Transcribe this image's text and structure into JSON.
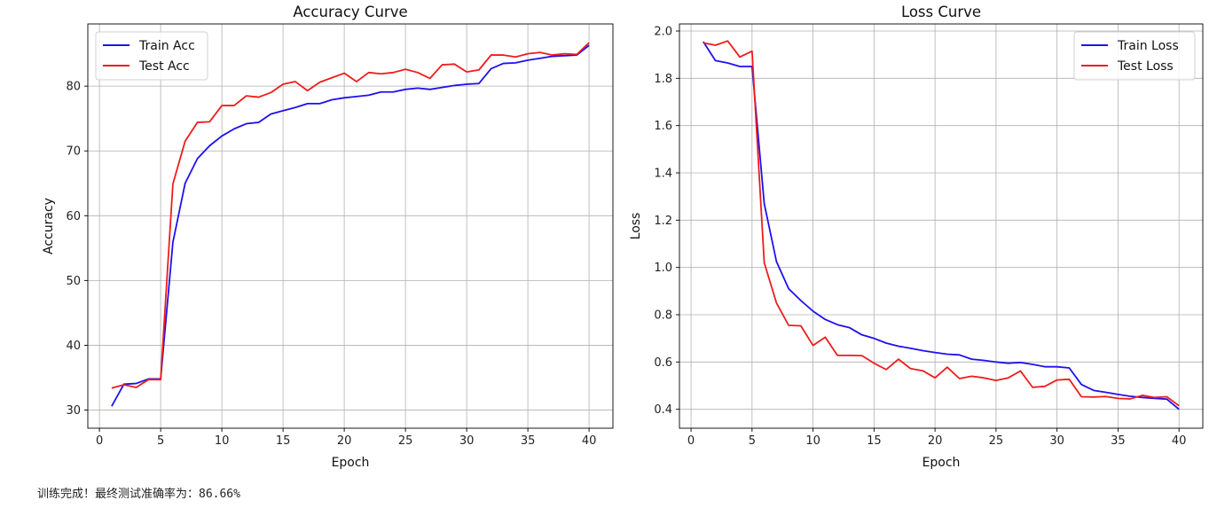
{
  "status_text": "训练完成！最终测试准确率为：86.66%",
  "chart_data": [
    {
      "type": "line",
      "title": "Accuracy Curve",
      "xlabel": "Epoch",
      "ylabel": "Accuracy",
      "xlim": [
        -0.95,
        41.95
      ],
      "ylim": [
        27.2,
        89.6
      ],
      "xticks": [
        0,
        5,
        10,
        15,
        20,
        25,
        30,
        35,
        40
      ],
      "yticks": [
        30,
        40,
        50,
        60,
        70,
        80
      ],
      "grid": true,
      "legend": "top-left",
      "x": [
        1,
        2,
        3,
        4,
        5,
        6,
        7,
        8,
        9,
        10,
        11,
        12,
        13,
        14,
        15,
        16,
        17,
        18,
        19,
        20,
        21,
        22,
        23,
        24,
        25,
        26,
        27,
        28,
        29,
        30,
        31,
        32,
        33,
        34,
        35,
        36,
        37,
        38,
        39,
        40
      ],
      "series": [
        {
          "name": "Train Acc",
          "color": "#1f10ef",
          "values": [
            30.6,
            34.0,
            34.1,
            34.8,
            34.8,
            55.9,
            65.0,
            68.8,
            70.8,
            72.3,
            73.4,
            74.2,
            74.4,
            75.7,
            76.2,
            76.7,
            77.3,
            77.3,
            77.9,
            78.2,
            78.4,
            78.6,
            79.1,
            79.1,
            79.5,
            79.7,
            79.5,
            79.8,
            80.1,
            80.3,
            80.4,
            82.7,
            83.5,
            83.6,
            84.0,
            84.3,
            84.6,
            84.7,
            84.8,
            86.3
          ]
        },
        {
          "name": "Test Acc",
          "color": "#ee1c1c",
          "values": [
            33.4,
            33.9,
            33.5,
            34.7,
            34.7,
            64.9,
            71.5,
            74.4,
            74.5,
            77.0,
            77.0,
            78.5,
            78.3,
            79.0,
            80.3,
            80.7,
            79.3,
            80.6,
            81.3,
            82.0,
            80.7,
            82.1,
            81.9,
            82.1,
            82.6,
            82.1,
            81.2,
            83.3,
            83.4,
            82.2,
            82.5,
            84.8,
            84.8,
            84.5,
            85.0,
            85.2,
            84.8,
            85.0,
            84.9,
            86.7
          ]
        }
      ]
    },
    {
      "type": "line",
      "title": "Loss Curve",
      "xlabel": "Epoch",
      "ylabel": "Loss",
      "xlim": [
        -0.95,
        41.95
      ],
      "ylim": [
        0.32,
        2.03
      ],
      "xticks": [
        0,
        5,
        10,
        15,
        20,
        25,
        30,
        35,
        40
      ],
      "yticks": [
        0.4,
        0.6,
        0.8,
        1.0,
        1.2,
        1.4,
        1.6,
        1.8,
        2.0
      ],
      "grid": true,
      "legend": "top-right",
      "x": [
        1,
        2,
        3,
        4,
        5,
        6,
        7,
        8,
        9,
        10,
        11,
        12,
        13,
        14,
        15,
        16,
        17,
        18,
        19,
        20,
        21,
        22,
        23,
        24,
        25,
        26,
        27,
        28,
        29,
        30,
        31,
        32,
        33,
        34,
        35,
        36,
        37,
        38,
        39,
        40
      ],
      "series": [
        {
          "name": "Train Loss",
          "color": "#1f10ef",
          "values": [
            1.955,
            1.875,
            1.865,
            1.85,
            1.85,
            1.27,
            1.025,
            0.91,
            0.86,
            0.815,
            0.78,
            0.758,
            0.745,
            0.715,
            0.7,
            0.68,
            0.667,
            0.658,
            0.648,
            0.64,
            0.633,
            0.63,
            0.612,
            0.607,
            0.6,
            0.595,
            0.598,
            0.59,
            0.58,
            0.58,
            0.575,
            0.505,
            0.48,
            0.472,
            0.463,
            0.455,
            0.45,
            0.446,
            0.443,
            0.4
          ]
        },
        {
          "name": "Test Loss",
          "color": "#ee1c1c",
          "values": [
            1.95,
            1.94,
            1.958,
            1.89,
            1.915,
            1.02,
            0.85,
            0.755,
            0.753,
            0.67,
            0.705,
            0.628,
            0.628,
            0.627,
            0.595,
            0.568,
            0.612,
            0.572,
            0.563,
            0.533,
            0.578,
            0.53,
            0.54,
            0.533,
            0.522,
            0.533,
            0.562,
            0.493,
            0.497,
            0.524,
            0.527,
            0.453,
            0.452,
            0.454,
            0.446,
            0.444,
            0.459,
            0.45,
            0.453,
            0.415
          ]
        }
      ]
    }
  ]
}
